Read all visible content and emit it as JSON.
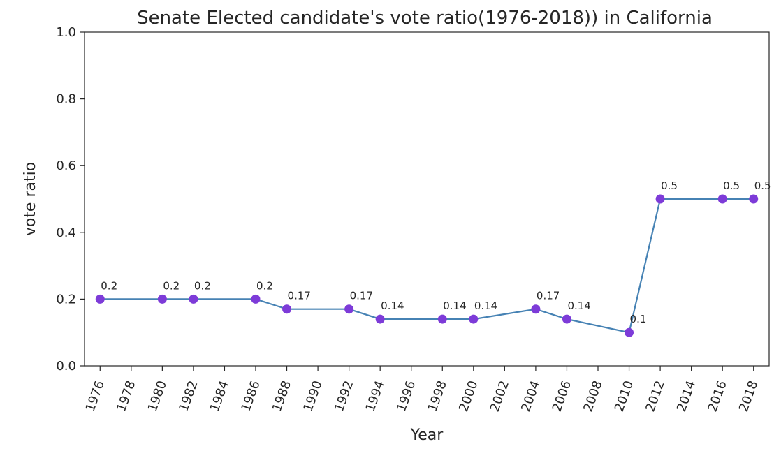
{
  "chart_data": {
    "type": "line",
    "title": "Senate Elected candidate's vote ratio(1976-2018)) in California",
    "xlabel": "Year",
    "ylabel": "vote ratio",
    "xlim": [
      1975,
      2019
    ],
    "ylim": [
      0.0,
      1.0
    ],
    "x_ticks": [
      1976,
      1978,
      1980,
      1982,
      1984,
      1986,
      1988,
      1990,
      1992,
      1994,
      1996,
      1998,
      2000,
      2002,
      2004,
      2006,
      2008,
      2010,
      2012,
      2014,
      2016,
      2018
    ],
    "y_ticks": [
      "0.0",
      "0.2",
      "0.4",
      "0.6",
      "0.8",
      "1.0"
    ],
    "grid": false,
    "legend": "none",
    "series": [
      {
        "x": [
          1976,
          1980,
          1982,
          1986,
          1988,
          1992,
          1994,
          1998,
          2000,
          2004,
          2006,
          2010,
          2012,
          2016,
          2018
        ],
        "values": [
          0.2,
          0.2,
          0.2,
          0.2,
          0.17,
          0.17,
          0.14,
          0.14,
          0.14,
          0.17,
          0.14,
          0.1,
          0.5,
          0.5,
          0.5
        ],
        "labels": [
          "0.2",
          "0.2",
          "0.2",
          "0.2",
          "0.17",
          "0.17",
          "0.14",
          "0.14",
          "0.14",
          "0.17",
          "0.14",
          "0.1",
          "0.5",
          "0.5",
          "0.5"
        ],
        "line_color": "#4682b4",
        "marker_color": "#7d3bd8"
      }
    ]
  }
}
